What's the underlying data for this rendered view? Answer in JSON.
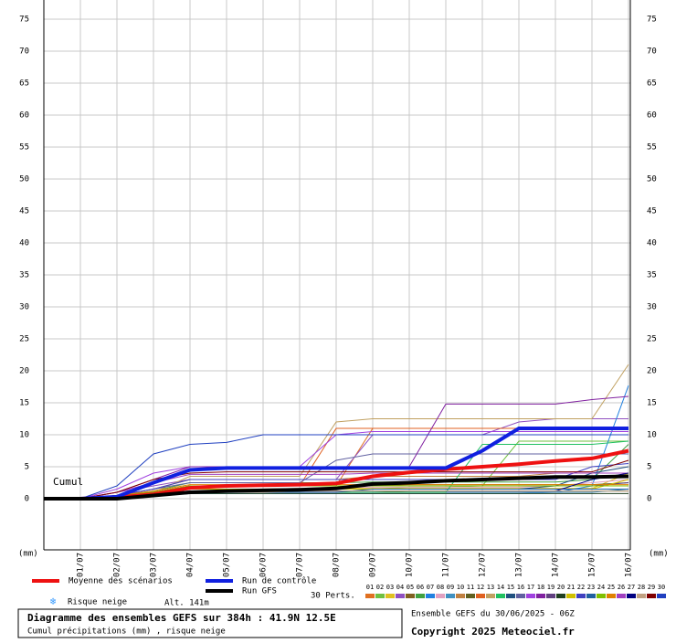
{
  "chart_data": {
    "type": "line",
    "title": "Diagramme des ensembles GEFS sur 384h : 41.9N 12.5E",
    "subtitle": "Cumul précipitations (mm) , risque neige",
    "run_label": "Ensemble GEFS du 30/06/2025 - 06Z",
    "copyright": "Copyright 2025 Meteociel.fr",
    "annotation": "Cumul",
    "y_unit": "(mm)",
    "perts_label": "30 Perts.",
    "snow_label": "Risque neige",
    "altitude": "Alt. 141m",
    "categories": [
      null,
      "01/07",
      "02/07",
      "03/07",
      "04/07",
      "05/07",
      "06/07",
      "07/07",
      "08/07",
      "09/07",
      "10/07",
      "11/07",
      "12/07",
      "13/07",
      "14/07",
      "15/07",
      "16/07"
    ],
    "ylim": [
      -8,
      78
    ],
    "yticks": [
      0,
      5,
      10,
      15,
      20,
      25,
      30,
      35,
      40,
      45,
      50,
      55,
      60,
      65,
      70,
      75
    ],
    "grid": true,
    "series": [
      {
        "name": "Moyenne des scénarios",
        "color": "#ee1111",
        "width": 4,
        "values": [
          0,
          0,
          0.2,
          0.7,
          1.7,
          2,
          2.1,
          2.2,
          2.4,
          3.5,
          4.1,
          4.6,
          5,
          5.4,
          5.9,
          6.3,
          7.5
        ]
      },
      {
        "name": "Run de contrôle",
        "color": "#1020e0",
        "width": 4,
        "values": [
          0,
          0,
          0.3,
          2.5,
          4.5,
          4.8,
          4.8,
          4.8,
          4.8,
          4.8,
          4.8,
          4.8,
          7.5,
          11,
          11,
          11,
          11
        ]
      },
      {
        "name": "Run GFS",
        "color": "#000000",
        "width": 4,
        "values": [
          0,
          0,
          0,
          0.5,
          1,
          1.2,
          1.3,
          1.4,
          1.6,
          2.3,
          2.5,
          2.8,
          3,
          3.2,
          3.4,
          3.4,
          3.5
        ]
      },
      {
        "name": "01",
        "color": "#e07020",
        "values": [
          0,
          0,
          0.5,
          1,
          2,
          2,
          2,
          2,
          2,
          11,
          11,
          11,
          11,
          11,
          11,
          11,
          11
        ]
      },
      {
        "name": "02",
        "color": "#70c040",
        "values": [
          0,
          0,
          0.3,
          0.6,
          1,
          1,
          1,
          1.2,
          1.5,
          1.5,
          1.8,
          1.8,
          2,
          9,
          9,
          9,
          9
        ]
      },
      {
        "name": "03",
        "color": "#e0c020",
        "values": [
          0,
          0,
          0.5,
          1,
          1.5,
          1.5,
          1.5,
          1.6,
          1.6,
          1.6,
          1.6,
          1.6,
          1.6,
          1.6,
          1.6,
          1.6,
          4
        ]
      },
      {
        "name": "04",
        "color": "#9050c0",
        "values": [
          0,
          0,
          1,
          2,
          3,
          3,
          3,
          3,
          3,
          10,
          10,
          10,
          10,
          12,
          12.5,
          12.5,
          12.5
        ]
      },
      {
        "name": "05",
        "color": "#806020",
        "values": [
          0,
          0,
          0.2,
          0.5,
          0.8,
          1,
          1,
          1,
          1,
          1,
          1.2,
          1.2,
          1.2,
          1.2,
          1.2,
          1.2,
          1.2
        ]
      },
      {
        "name": "06",
        "color": "#40a040",
        "values": [
          0,
          0,
          0.5,
          1.2,
          2.5,
          2.5,
          2.5,
          2.5,
          2.5,
          2.6,
          2.6,
          2.6,
          2.6,
          2.6,
          2.6,
          3,
          8.5
        ]
      },
      {
        "name": "07",
        "color": "#2080e0",
        "values": [
          0,
          0,
          0.2,
          0.4,
          0.8,
          0.8,
          0.8,
          0.8,
          0.8,
          0.8,
          0.8,
          0.8,
          0.8,
          0.8,
          1,
          2,
          17.7
        ]
      },
      {
        "name": "08",
        "color": "#e0a0c0",
        "values": [
          0,
          0,
          0.3,
          0.8,
          1.5,
          1.5,
          1.5,
          1.6,
          1.8,
          1.8,
          1.8,
          1.8,
          1.8,
          1.8,
          2,
          2.5,
          3
        ]
      },
      {
        "name": "09",
        "color": "#4090c0",
        "values": [
          0,
          0,
          0.2,
          0.5,
          1,
          1,
          1,
          1,
          1,
          1,
          1,
          1,
          1,
          1,
          1,
          1,
          1.5
        ]
      },
      {
        "name": "10",
        "color": "#c08040",
        "values": [
          0,
          0,
          0.5,
          1.5,
          3,
          3,
          3,
          3,
          3,
          3.5,
          3.5,
          3.5,
          3.5,
          3.5,
          4,
          4,
          4
        ]
      },
      {
        "name": "11",
        "color": "#606020",
        "values": [
          0,
          0,
          0.3,
          0.8,
          2,
          2,
          2,
          2,
          2,
          2,
          2.2,
          2.2,
          2.2,
          2.2,
          2.2,
          2.2,
          2.5
        ]
      },
      {
        "name": "12",
        "color": "#e06020",
        "values": [
          0,
          0,
          0.5,
          1,
          2,
          2,
          2,
          2,
          11,
          11,
          11,
          11,
          11,
          11,
          11,
          11,
          11
        ]
      },
      {
        "name": "13",
        "color": "#c0a060",
        "values": [
          0,
          0,
          0.5,
          1,
          3.5,
          3.5,
          3.5,
          3.5,
          12,
          12.5,
          12.5,
          12.5,
          12.5,
          12.5,
          12.5,
          12.5,
          21
        ]
      },
      {
        "name": "14",
        "color": "#20c060",
        "values": [
          0,
          0,
          0.2,
          0.5,
          1,
          1,
          1,
          1,
          1,
          1,
          1,
          1,
          8.5,
          8.5,
          8.5,
          8.5,
          9
        ]
      },
      {
        "name": "15",
        "color": "#205080",
        "values": [
          0,
          0,
          0.3,
          0.8,
          1.5,
          1.5,
          1.5,
          1.5,
          1.5,
          1.5,
          1.5,
          1.5,
          1.5,
          1.5,
          2,
          4,
          5
        ]
      },
      {
        "name": "16",
        "color": "#6060a0",
        "values": [
          0,
          0,
          0.5,
          1.5,
          2.5,
          2.5,
          2.5,
          2.5,
          6,
          7,
          7,
          7,
          7,
          7,
          7,
          7,
          7
        ]
      },
      {
        "name": "17",
        "color": "#a040e0",
        "values": [
          0,
          0,
          1.5,
          4,
          5,
          5,
          5,
          5,
          10,
          10.5,
          10.5,
          10.5,
          10.5,
          10.5,
          10.5,
          10.5,
          10.5
        ]
      },
      {
        "name": "18",
        "color": "#8020a0",
        "values": [
          0,
          0,
          1,
          3,
          5,
          5,
          5,
          5,
          5,
          5,
          5,
          14.8,
          14.8,
          14.8,
          14.8,
          15.5,
          16
        ]
      },
      {
        "name": "19",
        "color": "#604080",
        "values": [
          0,
          0,
          0.5,
          1,
          2,
          2,
          2,
          2,
          2,
          2,
          2,
          2,
          2,
          2,
          2,
          2,
          2.5
        ]
      },
      {
        "name": "20",
        "color": "#204020",
        "values": [
          0,
          0,
          0.2,
          0.5,
          0.8,
          0.8,
          0.8,
          0.8,
          0.8,
          0.8,
          0.8,
          0.8,
          0.8,
          0.8,
          0.8,
          0.8,
          0.8
        ]
      },
      {
        "name": "21",
        "color": "#d0c000",
        "values": [
          0,
          0,
          0.3,
          0.8,
          1.5,
          1.5,
          1.5,
          1.5,
          1.5,
          1.5,
          1.5,
          1.5,
          1.5,
          1.5,
          1.5,
          1.5,
          3
        ]
      },
      {
        "name": "22",
        "color": "#4040c0",
        "values": [
          0,
          0,
          0.5,
          1.5,
          3,
          3,
          3,
          3,
          3,
          3,
          3,
          3,
          3,
          3,
          3,
          5,
          5.5
        ]
      },
      {
        "name": "23",
        "color": "#2060a0",
        "values": [
          0,
          0,
          0.2,
          0.5,
          1,
          1,
          1,
          1,
          1,
          1.5,
          1.5,
          1.5,
          1.5,
          1.5,
          1.5,
          1.5,
          1.5
        ]
      },
      {
        "name": "24",
        "color": "#80c000",
        "values": [
          0,
          0,
          0.5,
          1,
          2,
          2,
          2,
          2,
          2,
          2,
          2,
          2,
          2,
          2,
          2,
          2,
          2
        ]
      },
      {
        "name": "25",
        "color": "#e08000",
        "values": [
          0,
          0,
          0.5,
          1.2,
          2.2,
          2.2,
          2.2,
          2.2,
          2.2,
          2.2,
          2.2,
          2.2,
          2.2,
          2.2,
          2.2,
          2.2,
          2.2
        ]
      },
      {
        "name": "26",
        "color": "#a040c0",
        "values": [
          0,
          0,
          1,
          2.5,
          3.8,
          3.8,
          3.8,
          3.8,
          3.8,
          4,
          4,
          4,
          4,
          4,
          4,
          4,
          4
        ]
      },
      {
        "name": "27",
        "color": "#000080",
        "values": [
          0,
          0,
          0.3,
          0.8,
          1.2,
          1.2,
          1.2,
          1.2,
          1.2,
          1.2,
          1.2,
          1.2,
          1.2,
          1.2,
          1.2,
          3,
          4
        ]
      },
      {
        "name": "28",
        "color": "#c0a080",
        "values": [
          0,
          0,
          0.2,
          0.5,
          1,
          1,
          1,
          1.2,
          1.2,
          1.2,
          1.2,
          1.2,
          1.2,
          1.2,
          1.2,
          1.2,
          1.2
        ]
      },
      {
        "name": "29",
        "color": "#800000",
        "values": [
          0,
          0,
          1,
          3,
          4,
          4.2,
          4.2,
          4.2,
          4.2,
          4.2,
          4.2,
          4.2,
          4.2,
          4.2,
          4.2,
          4.2,
          6
        ]
      },
      {
        "name": "30",
        "color": "#2040c0",
        "values": [
          0,
          0,
          2,
          7,
          8.5,
          8.8,
          10,
          10,
          10,
          10,
          10,
          10,
          10,
          10,
          10,
          10,
          10
        ]
      }
    ]
  }
}
